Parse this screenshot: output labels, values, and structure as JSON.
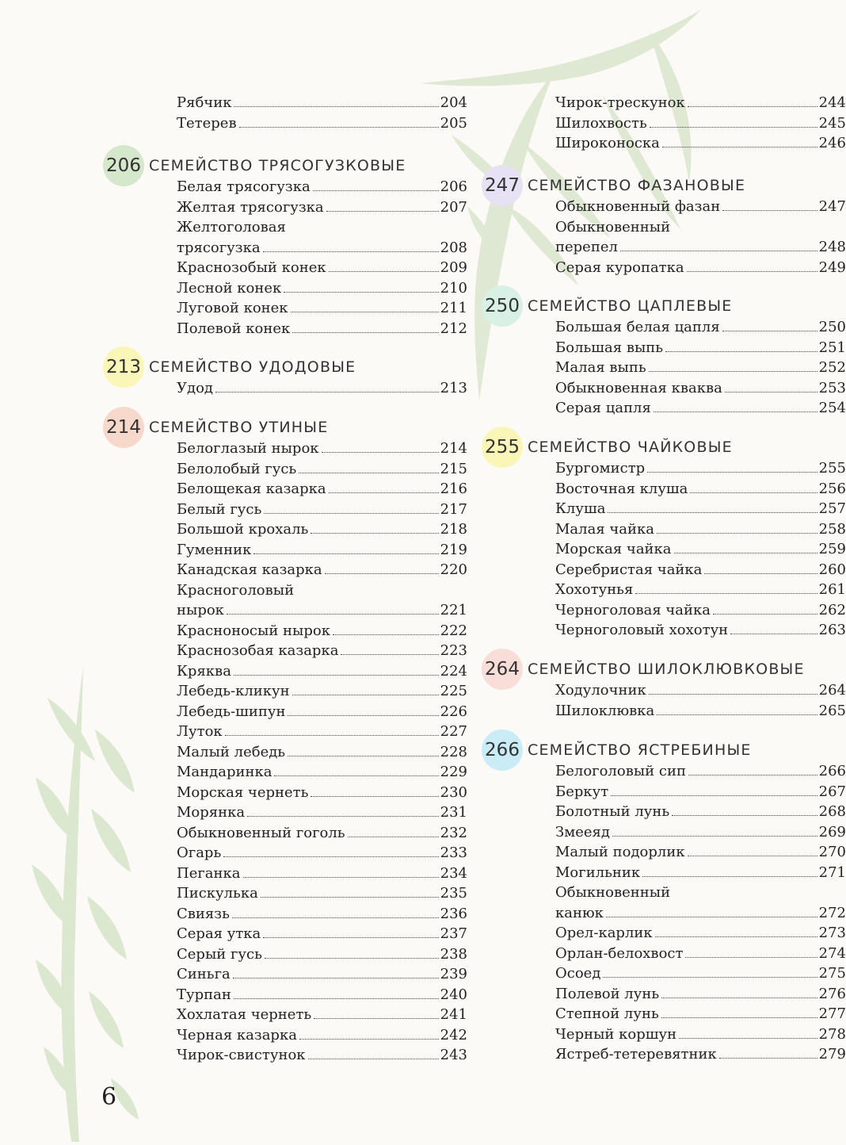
{
  "page_number": "6",
  "colors": {
    "green": "#d6e8cc",
    "yellow": "#faf6b8",
    "salmon": "#f7d9cc",
    "lavender": "#e6e2f3",
    "mint": "#d9f0e4",
    "pink": "#f8ddd8",
    "cyan": "#c9ecf6",
    "foliage": "#c9dbb6"
  },
  "left_column": {
    "leading_entries": [
      {
        "name": "Рябчик",
        "page": "204"
      },
      {
        "name": "Тетерев",
        "page": "205"
      }
    ],
    "families": [
      {
        "number": "206",
        "title": "Семейство трясогузковые",
        "circle_color": "green",
        "entries": [
          {
            "name": "Белая трясогузка",
            "page": "206"
          },
          {
            "name": "Желтая трясогузка",
            "page": "207"
          },
          {
            "first_line": "Желтоголовая",
            "name": "трясогузка",
            "page": "208"
          },
          {
            "name": "Краснозобый конек",
            "page": "209"
          },
          {
            "name": "Лесной конек",
            "page": "210"
          },
          {
            "name": "Луговой конек",
            "page": "211"
          },
          {
            "name": "Полевой конек",
            "page": "212"
          }
        ]
      },
      {
        "number": "213",
        "title": "Семейство удодовые",
        "circle_color": "yellow",
        "entries": [
          {
            "name": "Удод",
            "page": "213"
          }
        ]
      },
      {
        "number": "214",
        "title": "Семейство утиные",
        "circle_color": "salmon",
        "entries": [
          {
            "name": "Белоглазый нырок",
            "page": "214"
          },
          {
            "name": "Белолобый гусь",
            "page": "215"
          },
          {
            "name": "Белощекая казарка",
            "page": "216"
          },
          {
            "name": "Белый гусь",
            "page": "217"
          },
          {
            "name": "Большой крохаль",
            "page": "218"
          },
          {
            "name": "Гуменник",
            "page": "219"
          },
          {
            "name": "Канадская казарка",
            "page": "220"
          },
          {
            "first_line": "Красноголовый",
            "name": "нырок",
            "page": "221"
          },
          {
            "name": "Красноносый нырок",
            "page": "222"
          },
          {
            "name": "Краснозобая казарка",
            "page": "223"
          },
          {
            "name": "Кряква",
            "page": "224"
          },
          {
            "name": "Лебедь-кликун",
            "page": "225"
          },
          {
            "name": "Лебедь-шипун",
            "page": "226"
          },
          {
            "name": "Луток",
            "page": "227"
          },
          {
            "name": "Малый лебедь",
            "page": "228"
          },
          {
            "name": "Мандаринка",
            "page": "229"
          },
          {
            "name": "Морская чернеть",
            "page": "230"
          },
          {
            "name": "Морянка",
            "page": "231"
          },
          {
            "name": "Обыкновенный гоголь",
            "page": "232"
          },
          {
            "name": "Огарь",
            "page": "233"
          },
          {
            "name": "Пеганка",
            "page": "234"
          },
          {
            "name": "Пискулька",
            "page": "235"
          },
          {
            "name": "Свиязь",
            "page": "236"
          },
          {
            "name": "Серая утка",
            "page": "237"
          },
          {
            "name": "Серый гусь",
            "page": "238"
          },
          {
            "name": "Синьга",
            "page": "239"
          },
          {
            "name": "Турпан",
            "page": "240"
          },
          {
            "name": "Хохлатая чернеть",
            "page": "241"
          },
          {
            "name": "Черная казарка",
            "page": "242"
          },
          {
            "name": "Чирок-свистунок",
            "page": "243"
          }
        ]
      }
    ]
  },
  "right_column": {
    "leading_entries": [
      {
        "name": "Чирок-трескунок",
        "page": "244"
      },
      {
        "name": "Шилохвость",
        "page": "245"
      },
      {
        "name": "Широконоска",
        "page": "246"
      }
    ],
    "families": [
      {
        "number": "247",
        "title": "Семейство фазановые",
        "circle_color": "lavender",
        "entries": [
          {
            "name": "Обыкновенный фазан",
            "page": "247"
          },
          {
            "first_line": "Обыкновенный",
            "name": "перепел",
            "page": "248"
          },
          {
            "name": "Серая куропатка",
            "page": "249"
          }
        ]
      },
      {
        "number": "250",
        "title": "Семейство цаплевые",
        "circle_color": "mint",
        "entries": [
          {
            "name": "Большая белая цапля",
            "page": "250"
          },
          {
            "name": "Большая выпь",
            "page": "251"
          },
          {
            "name": "Малая выпь",
            "page": "252"
          },
          {
            "name": "Обыкновенная кваква",
            "page": "253"
          },
          {
            "name": "Серая цапля",
            "page": "254"
          }
        ]
      },
      {
        "number": "255",
        "title": "Семейство чайковые",
        "circle_color": "yellow",
        "entries": [
          {
            "name": "Бургомистр",
            "page": "255"
          },
          {
            "name": "Восточная клуша",
            "page": "256"
          },
          {
            "name": "Клуша",
            "page": "257"
          },
          {
            "name": "Малая чайка",
            "page": "258"
          },
          {
            "name": "Морская чайка",
            "page": "259"
          },
          {
            "name": "Серебристая чайка",
            "page": "260"
          },
          {
            "name": "Хохотунья",
            "page": "261"
          },
          {
            "name": "Черноголовая чайка",
            "page": "262"
          },
          {
            "name": "Черноголовый хохотун",
            "page": "263"
          }
        ]
      },
      {
        "number": "264",
        "title": "Семейство шилоклювковые",
        "circle_color": "pink",
        "entries": [
          {
            "name": "Ходулочник",
            "page": "264"
          },
          {
            "name": "Шилоклювка",
            "page": "265"
          }
        ]
      },
      {
        "number": "266",
        "title": "Семейство ястребиные",
        "circle_color": "cyan",
        "entries": [
          {
            "name": "Белоголовый сип",
            "page": "266"
          },
          {
            "name": "Беркут",
            "page": "267"
          },
          {
            "name": "Болотный лунь",
            "page": "268"
          },
          {
            "name": "Змееяд",
            "page": "269"
          },
          {
            "name": "Малый подорлик",
            "page": "270"
          },
          {
            "name": "Могильник",
            "page": "271"
          },
          {
            "first_line": "Обыкновенный",
            "name": "канюк",
            "page": "272"
          },
          {
            "name": "Орел-карлик",
            "page": "273"
          },
          {
            "name": "Орлан-белохвост",
            "page": "274"
          },
          {
            "name": "Осоед",
            "page": "275"
          },
          {
            "name": "Полевой лунь",
            "page": "276"
          },
          {
            "name": "Степной лунь",
            "page": "277"
          },
          {
            "name": "Черный коршун",
            "page": "278"
          },
          {
            "name": "Ястреб-тетеревятник",
            "page": "279"
          }
        ]
      }
    ]
  }
}
